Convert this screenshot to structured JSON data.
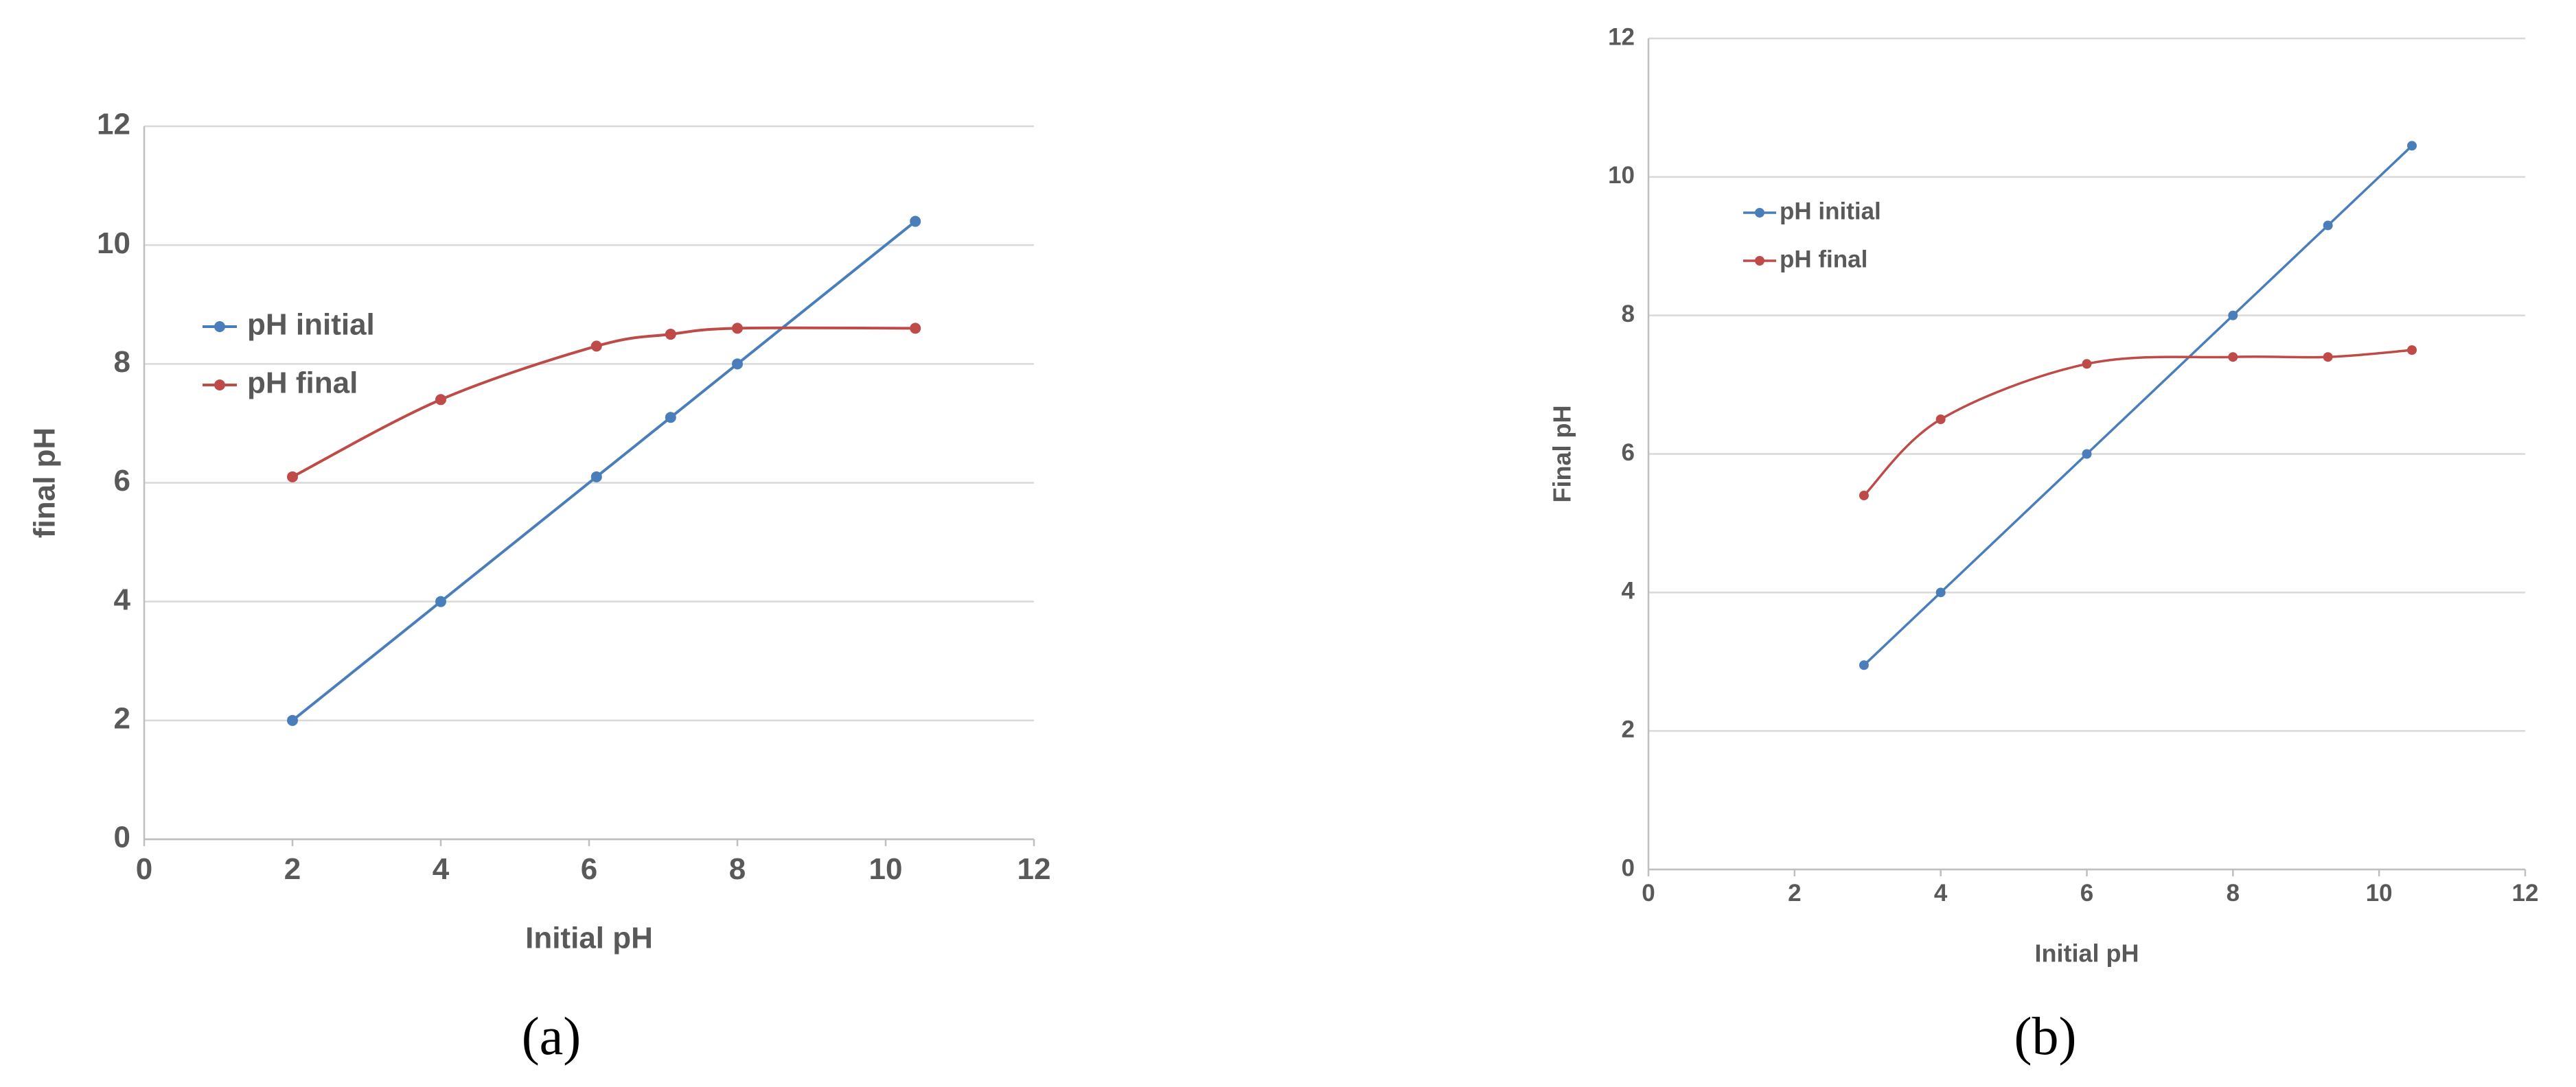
{
  "chart_data": [
    {
      "type": "line",
      "caption": "(a)",
      "x_label": "Initial pH",
      "y_label": "final pH",
      "xlim": [
        0,
        12
      ],
      "xticks": [
        0,
        2,
        4,
        6,
        8,
        10,
        12
      ],
      "ylim": [
        0,
        12
      ],
      "yticks": [
        0,
        2,
        4,
        6,
        8,
        10,
        12
      ],
      "grid": true,
      "smooth": true,
      "series": [
        {
          "name": "pH initial",
          "color": "#4a7ebb",
          "x": [
            2,
            4,
            6.1,
            7.1,
            8,
            10.4
          ],
          "values": [
            2,
            4,
            6.1,
            7.1,
            8,
            10.4
          ]
        },
        {
          "name": "pH final",
          "color": "#be4b48",
          "x": [
            2,
            4,
            6.1,
            7.1,
            8,
            10.4
          ],
          "values": [
            6.1,
            7.4,
            8.3,
            8.5,
            8.6,
            8.6
          ]
        }
      ]
    },
    {
      "type": "line",
      "caption": "(b)",
      "x_label": "Initial pH",
      "y_label": "Final pH",
      "xlim": [
        0,
        12
      ],
      "xticks": [
        0,
        2,
        4,
        6,
        8,
        10,
        12
      ],
      "ylim": [
        0,
        12
      ],
      "yticks": [
        0,
        2,
        4,
        6,
        8,
        10,
        12
      ],
      "grid": true,
      "smooth": true,
      "series": [
        {
          "name": "pH initial",
          "color": "#4a7ebb",
          "x": [
            2.95,
            4,
            6,
            8,
            9.3,
            10.45
          ],
          "values": [
            2.95,
            4,
            6,
            8,
            9.3,
            10.45
          ]
        },
        {
          "name": "pH final",
          "color": "#be4b48",
          "x": [
            2.95,
            4,
            6,
            8,
            9.3,
            10.45
          ],
          "values": [
            5.4,
            6.5,
            7.3,
            7.4,
            7.4,
            7.5
          ]
        }
      ]
    }
  ]
}
